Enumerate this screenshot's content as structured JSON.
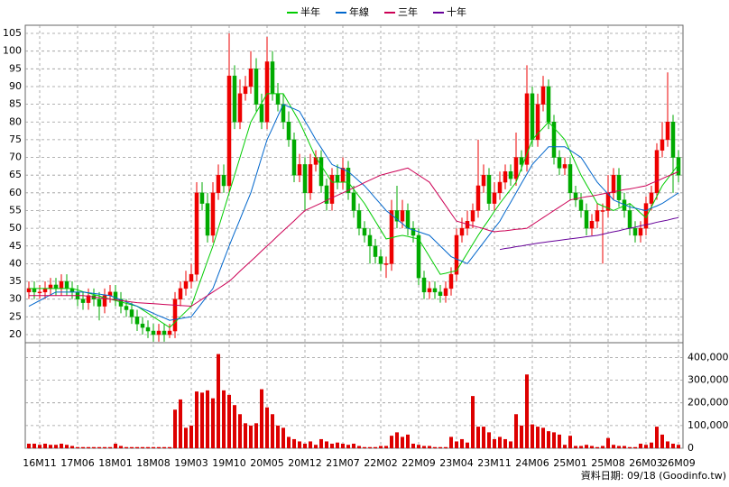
{
  "chart_data": {
    "type": "candlestick",
    "categories": [
      null,
      null,
      "16M11",
      null,
      null,
      null,
      null,
      null,
      null,
      "17M06",
      null,
      null,
      null,
      null,
      null,
      null,
      "18M01",
      null,
      null,
      null,
      null,
      null,
      null,
      "18M08",
      null,
      null,
      null,
      null,
      null,
      null,
      "19M03",
      null,
      null,
      null,
      null,
      null,
      null,
      "19M10",
      null,
      null,
      null,
      null,
      null,
      null,
      "20M05",
      null,
      null,
      null,
      null,
      null,
      null,
      "20M12",
      null,
      null,
      null,
      null,
      null,
      null,
      "21M07",
      null,
      null,
      null,
      null,
      null,
      null,
      "22M02",
      null,
      null,
      null,
      null,
      null,
      null,
      "22M09",
      null,
      null,
      null,
      null,
      null,
      null,
      "23M04",
      null,
      null,
      null,
      null,
      null,
      null,
      "23M11",
      null,
      null,
      null,
      null,
      null,
      null,
      "24M06",
      null,
      null,
      null,
      null,
      null,
      null,
      "25M01",
      null,
      null,
      null,
      null,
      null,
      null,
      "25M08",
      null,
      null,
      null,
      null,
      null,
      null,
      "26M03",
      null,
      null,
      null,
      null,
      null,
      "26M09"
    ],
    "open": [
      32,
      33,
      32,
      32,
      33,
      34,
      33,
      35,
      33,
      32,
      30,
      29,
      31,
      30,
      28,
      31,
      32,
      30,
      28,
      27,
      25,
      23,
      22,
      21,
      20,
      21,
      20,
      21,
      30,
      33,
      35,
      37,
      60,
      57,
      48,
      60,
      65,
      62,
      93,
      80,
      88,
      90,
      95,
      85,
      80,
      97,
      88,
      85,
      80,
      75,
      65,
      68,
      60,
      68,
      70,
      62,
      57,
      65,
      63,
      67,
      60,
      55,
      50,
      48,
      45,
      42,
      40,
      40,
      55,
      52,
      55,
      50,
      48,
      36,
      32,
      33,
      32,
      31,
      33,
      37,
      48,
      50,
      52,
      55,
      62,
      65,
      57,
      60,
      63,
      66,
      64,
      70,
      68,
      88,
      75,
      85,
      90,
      80,
      70,
      67,
      68,
      60,
      58,
      55,
      50,
      52,
      55,
      55,
      60,
      65,
      58,
      55,
      50,
      48,
      50,
      57,
      60,
      72,
      75,
      80,
      70
    ],
    "high": [
      35,
      35,
      34,
      35,
      36,
      36,
      37,
      37,
      35,
      34,
      32,
      33,
      33,
      32,
      33,
      34,
      34,
      32,
      30,
      29,
      27,
      25,
      24,
      23,
      23,
      23,
      23,
      32,
      35,
      38,
      40,
      63,
      63,
      60,
      63,
      68,
      68,
      105,
      96,
      92,
      93,
      100,
      98,
      88,
      104,
      100,
      91,
      88,
      83,
      77,
      71,
      70,
      71,
      72,
      72,
      64,
      67,
      68,
      70,
      69,
      62,
      57,
      52,
      50,
      47,
      44,
      42,
      58,
      62,
      58,
      57,
      52,
      50,
      38,
      35,
      35,
      34,
      35,
      39,
      50,
      53,
      55,
      57,
      75,
      68,
      67,
      63,
      66,
      68,
      68,
      77,
      72,
      96,
      90,
      88,
      93,
      92,
      82,
      72,
      70,
      70,
      62,
      60,
      57,
      54,
      57,
      57,
      65,
      67,
      67,
      60,
      57,
      52,
      52,
      59,
      62,
      74,
      80,
      94,
      82,
      72
    ],
    "low": [
      30,
      30,
      30,
      30,
      31,
      31,
      31,
      31,
      30,
      28,
      27,
      27,
      28,
      24,
      26,
      29,
      28,
      26,
      25,
      23,
      21,
      20,
      19,
      18,
      18,
      18,
      19,
      19,
      28,
      31,
      33,
      35,
      55,
      46,
      46,
      58,
      60,
      60,
      78,
      78,
      86,
      88,
      83,
      78,
      78,
      86,
      83,
      78,
      73,
      63,
      63,
      55,
      58,
      66,
      60,
      55,
      55,
      61,
      61,
      58,
      53,
      48,
      46,
      40,
      40,
      38,
      36,
      38,
      50,
      50,
      48,
      46,
      34,
      30,
      30,
      30,
      29,
      29,
      31,
      35,
      46,
      48,
      50,
      53,
      60,
      55,
      55,
      58,
      61,
      62,
      62,
      66,
      66,
      73,
      73,
      83,
      78,
      68,
      65,
      65,
      58,
      56,
      53,
      48,
      48,
      50,
      40,
      53,
      58,
      56,
      53,
      48,
      46,
      46,
      48,
      55,
      58,
      70,
      73,
      60,
      63
    ],
    "close": [
      33,
      32,
      32,
      33,
      34,
      33,
      35,
      33,
      32,
      30,
      29,
      31,
      30,
      28,
      31,
      32,
      30,
      28,
      27,
      25,
      23,
      22,
      21,
      20,
      21,
      20,
      21,
      30,
      33,
      35,
      37,
      60,
      57,
      48,
      60,
      65,
      62,
      93,
      80,
      88,
      90,
      95,
      85,
      80,
      97,
      88,
      85,
      80,
      75,
      65,
      68,
      60,
      68,
      70,
      62,
      57,
      65,
      63,
      67,
      60,
      55,
      50,
      48,
      45,
      42,
      40,
      40,
      55,
      52,
      55,
      50,
      48,
      36,
      32,
      33,
      32,
      31,
      33,
      37,
      48,
      50,
      52,
      55,
      62,
      65,
      57,
      60,
      63,
      66,
      64,
      70,
      68,
      88,
      75,
      85,
      90,
      80,
      70,
      67,
      68,
      60,
      58,
      55,
      50,
      52,
      55,
      55,
      60,
      65,
      58,
      55,
      50,
      48,
      50,
      57,
      60,
      72,
      75,
      80,
      70,
      65
    ],
    "up_color": "#ee0000",
    "down_color": "#00aa00",
    "ylim": [
      17.7,
      107.3
    ],
    "yticks": [
      20,
      25,
      30,
      35,
      40,
      45,
      50,
      55,
      60,
      65,
      70,
      75,
      80,
      85,
      90,
      95,
      100,
      105
    ],
    "grid": true,
    "series": [
      {
        "name": "半年",
        "color": "#00cc00",
        "values": [
          33,
          33,
          33,
          33,
          33,
          33,
          33,
          33,
          33,
          32.6,
          32.1,
          31.7,
          31.3,
          30.9,
          30.4,
          30,
          29.6,
          29.2,
          28.8,
          28.4,
          28,
          27,
          26,
          25,
          24,
          23,
          22,
          23.5,
          25,
          26.5,
          28,
          32.3,
          36.5,
          40.8,
          45,
          50,
          55,
          60,
          65,
          70,
          75,
          80,
          82.7,
          85.3,
          88,
          88,
          88,
          88,
          85.3,
          82.7,
          80,
          76.7,
          73.3,
          70,
          67.7,
          65.3,
          63,
          63,
          63,
          63,
          61,
          59,
          57,
          54.5,
          52,
          49.5,
          47,
          47.3,
          47.7,
          48,
          47.7,
          47.3,
          47,
          44.5,
          42,
          39.5,
          37,
          37.3,
          37.7,
          38,
          40.5,
          43,
          45.5,
          48,
          50.3,
          52.5,
          54.8,
          57,
          59,
          61,
          63,
          67,
          71,
          75,
          76.7,
          78.3,
          80,
          78.3,
          76.7,
          75,
          71.7,
          68.3,
          65,
          62.3,
          59.7,
          57,
          56.3,
          55.7,
          55,
          55.7,
          56.3,
          57,
          55.7,
          54.3,
          53,
          56,
          59,
          62,
          64,
          66,
          68
        ]
      },
      {
        "name": "年線",
        "color": "#0066cc",
        "values": [
          28,
          28.8,
          29.6,
          30.4,
          31.2,
          32,
          32,
          32,
          32,
          32,
          32,
          31.8,
          31.6,
          31.4,
          31.2,
          31,
          30.4,
          29.8,
          29.2,
          28.6,
          28,
          27.3,
          26.7,
          26,
          25.3,
          24.7,
          24,
          24.3,
          24.5,
          24.8,
          25,
          27,
          29,
          31,
          33,
          37,
          41,
          45,
          48.8,
          52.5,
          56.3,
          60,
          65,
          70,
          75,
          78.3,
          81.7,
          85,
          84.3,
          83.7,
          83,
          80.3,
          77.7,
          75,
          72.7,
          70.3,
          68,
          67.3,
          66.7,
          66,
          64.7,
          63.3,
          62,
          60.3,
          58.5,
          56.8,
          55,
          53.8,
          52.5,
          51.3,
          50,
          49.5,
          49,
          48.5,
          48,
          46.5,
          45,
          43.5,
          42,
          41.3,
          40.7,
          40,
          42,
          44,
          46,
          48,
          50,
          52,
          54.7,
          57.3,
          60,
          62.7,
          65.3,
          68,
          69.7,
          71.3,
          73,
          73,
          73,
          73,
          72,
          71,
          70,
          67.7,
          65.3,
          63,
          61.3,
          59.7,
          58,
          57.3,
          56.7,
          56,
          55.7,
          55.3,
          55,
          55.7,
          56.3,
          57,
          58,
          59,
          60
        ]
      },
      {
        "name": "三年",
        "color": "#cc0055",
        "values": [
          31,
          31,
          31,
          31,
          31,
          31,
          31,
          31,
          31,
          31,
          31,
          30.8,
          30.6,
          30.4,
          30.2,
          30,
          29.8,
          29.6,
          29.4,
          29.2,
          29,
          28.9,
          28.8,
          28.7,
          28.6,
          28.5,
          28.4,
          28.3,
          28.2,
          28.1,
          28,
          29,
          30,
          31,
          32,
          33,
          34,
          35,
          36.4,
          37.9,
          39.3,
          40.7,
          42.1,
          43.6,
          45,
          46.4,
          47.9,
          49.3,
          50.7,
          52.1,
          53.6,
          55,
          55.7,
          56.4,
          57.1,
          57.9,
          58.6,
          59.3,
          60,
          60.7,
          61.4,
          62.1,
          62.9,
          63.6,
          64.3,
          65,
          65.4,
          65.8,
          66.2,
          66.6,
          67,
          66,
          65,
          64,
          63,
          60.8,
          58.6,
          56.4,
          54.2,
          52,
          51.6,
          51.1,
          50.7,
          50.3,
          49.9,
          49.4,
          49,
          49.2,
          49.3,
          49.5,
          49.7,
          49.8,
          50,
          51,
          52,
          53,
          54,
          55,
          56,
          57,
          58,
          58.3,
          58.6,
          58.9,
          59.1,
          59.4,
          59.7,
          60,
          60.3,
          60.6,
          60.9,
          61.1,
          61.4,
          61.7,
          62,
          62.7,
          63.3,
          64,
          64.7,
          65.3,
          66
        ]
      },
      {
        "name": "十年",
        "color": "#660099",
        "values": [
          null,
          null,
          null,
          null,
          null,
          null,
          null,
          null,
          null,
          null,
          null,
          null,
          null,
          null,
          null,
          null,
          null,
          null,
          null,
          null,
          null,
          null,
          null,
          null,
          null,
          null,
          null,
          null,
          null,
          null,
          null,
          null,
          null,
          null,
          null,
          null,
          null,
          null,
          null,
          null,
          null,
          null,
          null,
          null,
          null,
          null,
          null,
          null,
          null,
          null,
          null,
          null,
          null,
          null,
          null,
          null,
          null,
          null,
          null,
          null,
          null,
          null,
          null,
          null,
          null,
          null,
          null,
          null,
          null,
          null,
          null,
          null,
          null,
          null,
          null,
          null,
          null,
          null,
          null,
          null,
          null,
          null,
          null,
          null,
          null,
          null,
          null,
          44,
          44.3,
          44.5,
          44.8,
          45,
          45.3,
          45.5,
          45.8,
          46,
          46.2,
          46.4,
          46.6,
          46.8,
          47,
          47.2,
          47.4,
          47.6,
          47.8,
          48,
          48.3,
          48.7,
          49,
          49.3,
          49.7,
          50,
          50.3,
          50.7,
          51,
          51.3,
          51.7,
          52,
          52.3,
          52.7,
          53
        ]
      }
    ],
    "volume": {
      "color": "#dd0000",
      "values": [
        20000,
        20000,
        15000,
        20000,
        15000,
        15000,
        20000,
        15000,
        10000,
        5000,
        5000,
        5000,
        5000,
        5000,
        5000,
        5000,
        20000,
        10000,
        5000,
        5000,
        5000,
        5000,
        5000,
        5000,
        5000,
        5000,
        5000,
        170000,
        215000,
        90000,
        100000,
        250000,
        245000,
        255000,
        220000,
        415000,
        255000,
        235000,
        190000,
        150000,
        110000,
        100000,
        110000,
        260000,
        180000,
        150000,
        100000,
        90000,
        50000,
        40000,
        30000,
        20000,
        30000,
        15000,
        40000,
        30000,
        20000,
        25000,
        20000,
        15000,
        20000,
        10000,
        5000,
        5000,
        5000,
        10000,
        10000,
        55000,
        70000,
        50000,
        60000,
        20000,
        15000,
        10000,
        10000,
        5000,
        5000,
        5000,
        50000,
        30000,
        40000,
        25000,
        230000,
        95000,
        95000,
        70000,
        40000,
        50000,
        40000,
        30000,
        150000,
        100000,
        325000,
        105000,
        95000,
        90000,
        75000,
        70000,
        60000,
        15000,
        55000,
        10000,
        10000,
        15000,
        10000,
        5000,
        10000,
        45000,
        15000,
        10000,
        10000,
        5000,
        5000,
        20000,
        15000,
        25000,
        95000,
        60000,
        30000,
        20000,
        15000
      ],
      "ylim": [
        0,
        465000
      ],
      "yticks": [
        0,
        {
          "value": 100000,
          "label": "100,000"
        },
        {
          "value": 200000,
          "label": "200,000"
        },
        {
          "value": 300000,
          "label": "300,000"
        },
        {
          "value": 400000,
          "label": "400,000"
        }
      ]
    },
    "footer": "資料日期: 09/18 (Goodinfo.tw)"
  }
}
